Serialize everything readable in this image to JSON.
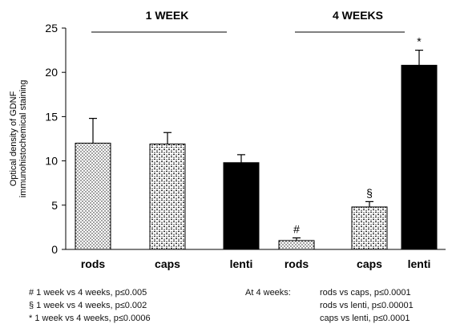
{
  "chart_data": {
    "type": "bar",
    "ylabel": [
      "Optical density of GDNF",
      "immunohistochemical staining"
    ],
    "ylim": [
      0,
      25
    ],
    "yticks": [
      0,
      5,
      10,
      15,
      20,
      25
    ],
    "categories": [
      "rods",
      "caps",
      "lenti",
      "rods",
      "caps",
      "lenti"
    ],
    "values": [
      12.0,
      11.9,
      9.8,
      1.0,
      4.8,
      20.8
    ],
    "errors": [
      2.8,
      1.3,
      0.9,
      0.3,
      0.6,
      1.7
    ],
    "fills": [
      "dots",
      "checker",
      "solid",
      "dots",
      "checker",
      "solid"
    ],
    "significance_marks": [
      "",
      "",
      "",
      "#",
      "§",
      "*"
    ],
    "groups": [
      {
        "label": "1 WEEK",
        "bars": [
          0,
          1,
          2
        ]
      },
      {
        "label": "4 WEEKS",
        "bars": [
          3,
          4,
          5
        ]
      }
    ],
    "grid": false
  },
  "notes": {
    "left": [
      "# 1 week vs 4 weeks, p≤0.005",
      "§ 1 week vs 4 weeks, p≤0.002",
      "* 1 week vs 4 weeks, p≤0.0006"
    ],
    "right_title": "At 4 weeks:",
    "right": [
      "rods vs caps, p≤0.0001",
      "rods vs lenti, p≤0.00001",
      "caps vs lenti, p≤0.0001"
    ]
  }
}
